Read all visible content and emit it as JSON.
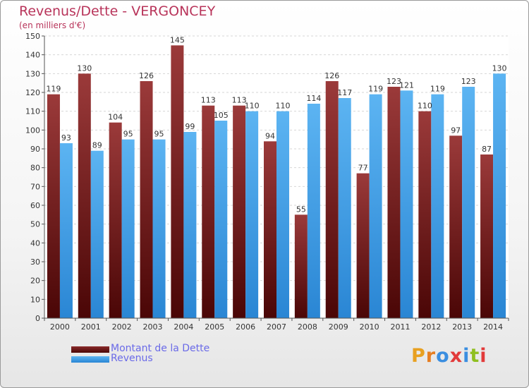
{
  "title": "Revenus/Dette - VERGONCEY",
  "subtitle": "(en milliers d'€)",
  "legend": [
    {
      "label": "Montant de la Dette",
      "color": "#6b1414"
    },
    {
      "label": "Revenus",
      "color": "#4aa3e6"
    }
  ],
  "logo": {
    "text": "Proxiti",
    "letter_colors": [
      "#e8a020",
      "#e67e22",
      "#3a8ee0",
      "#e23a3a",
      "#3a8ee0",
      "#8fbf20",
      "#e23a3a"
    ]
  },
  "chart_data": {
    "type": "bar",
    "categories": [
      "2000",
      "2001",
      "2002",
      "2003",
      "2004",
      "2005",
      "2006",
      "2007",
      "2008",
      "2009",
      "2010",
      "2011",
      "2012",
      "2013",
      "2014"
    ],
    "series": [
      {
        "name": "Montant de la Dette",
        "values": [
          119,
          130,
          104,
          126,
          145,
          113,
          113,
          94,
          55,
          126,
          77,
          123,
          110,
          97,
          87
        ],
        "color": "#6b1414"
      },
      {
        "name": "Revenus",
        "values": [
          93,
          89,
          95,
          95,
          99,
          105,
          110,
          110,
          114,
          117,
          119,
          121,
          119,
          123,
          130
        ],
        "color": "#4aa3e6"
      }
    ],
    "ylim": [
      0,
      150
    ],
    "yticks": [
      0,
      10,
      20,
      30,
      40,
      50,
      60,
      70,
      80,
      90,
      100,
      110,
      120,
      130,
      140,
      150
    ],
    "grid": true,
    "legend_position": "bottom-left"
  }
}
